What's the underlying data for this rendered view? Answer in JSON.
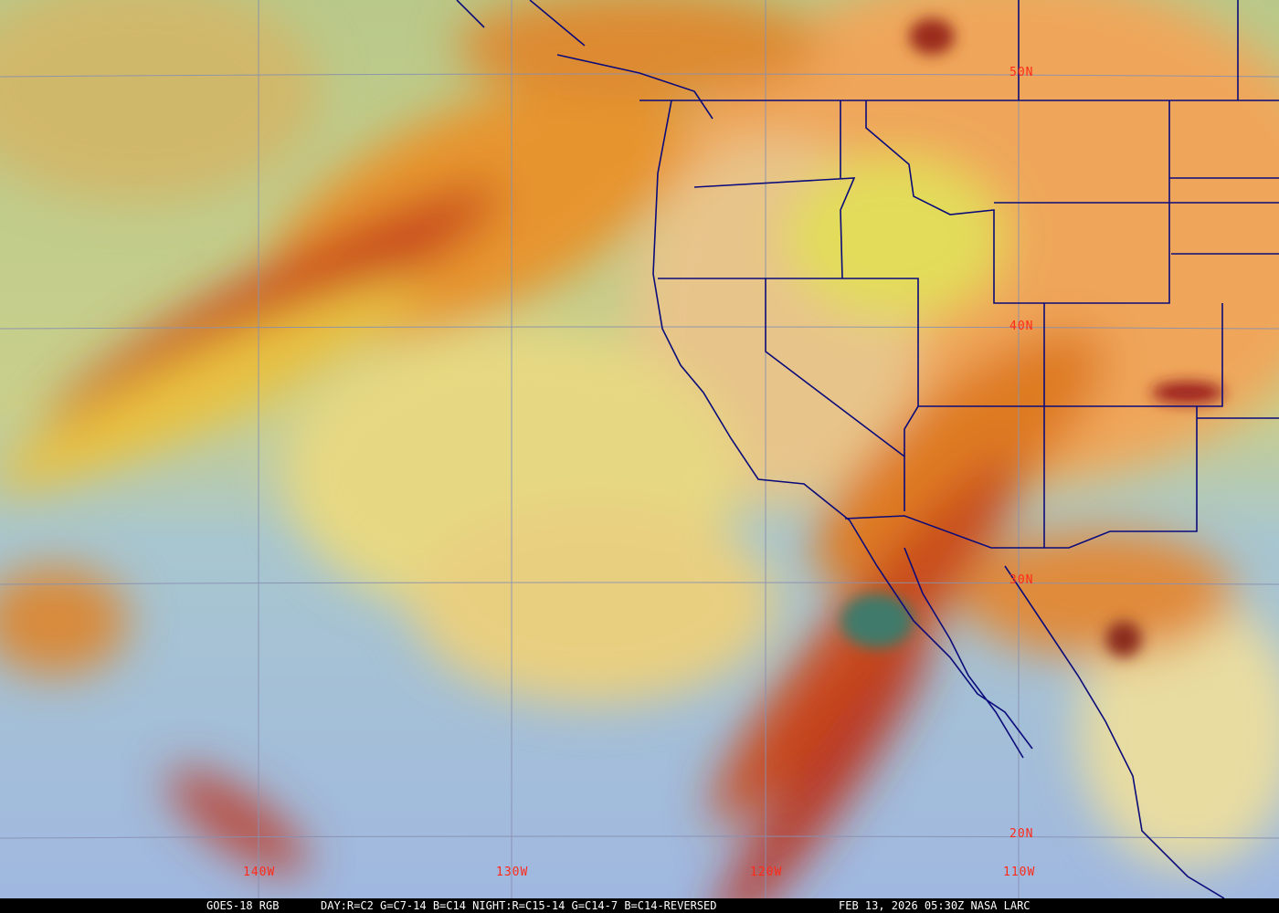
{
  "caption": {
    "satellite": "GOES-18 RGB",
    "recipe": "DAY:R=C2 G=C7-14 B=C14 NIGHT:R=C15-14 G=C14-7 B=C14-REVERSED",
    "timestamp": "FEB 13, 2026 05:30Z NASA LARC"
  },
  "grid_labels": {
    "lat": [
      "50N",
      "40N",
      "30N",
      "20N"
    ],
    "lon": [
      "140W",
      "130W",
      "120W",
      "110W"
    ]
  },
  "colors": {
    "label": "#ff2a1a",
    "borders": "#0a0a7a",
    "gridlines": "#8890b0"
  }
}
